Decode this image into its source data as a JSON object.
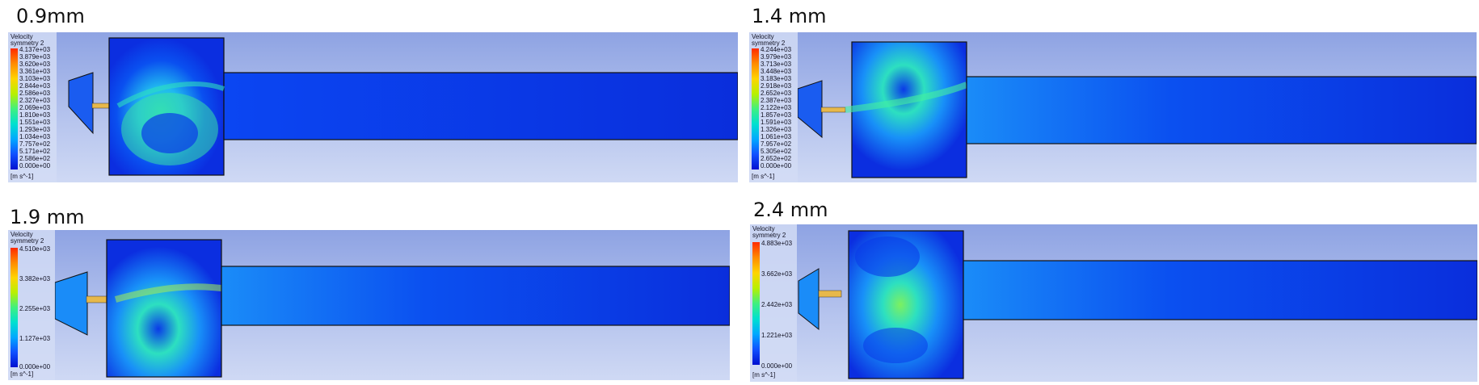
{
  "panels": [
    {
      "title": "0.9mm",
      "legend_header": [
        "Velocity",
        "symmetry 2"
      ],
      "unit": "[m s^-1]",
      "ticks": [
        "4.137e+03",
        "3.879e+03",
        "3.620e+03",
        "3.361e+03",
        "3.103e+03",
        "2.844e+03",
        "2.586e+03",
        "2.327e+03",
        "2.069e+03",
        "1.810e+03",
        "1.551e+03",
        "1.293e+03",
        "1.034e+03",
        "7.757e+02",
        "5.171e+02",
        "2.586e+02",
        "0.000e+00"
      ]
    },
    {
      "title": "1.4 mm",
      "legend_header": [
        "Velocity",
        "symmetry 2"
      ],
      "unit": "[m s^-1]",
      "ticks": [
        "4.244e+03",
        "3.979e+03",
        "3.713e+03",
        "3.448e+03",
        "3.183e+03",
        "2.918e+03",
        "2.652e+03",
        "2.387e+03",
        "2.122e+03",
        "1.857e+03",
        "1.591e+03",
        "1.326e+03",
        "1.061e+03",
        "7.957e+02",
        "5.305e+02",
        "2.652e+02",
        "0.000e+00"
      ]
    },
    {
      "title": "1.9 mm",
      "legend_header": [
        "Velocity",
        "symmetry 2"
      ],
      "unit": "[m s^-1]",
      "ticks": [
        "4.510e+03",
        "3.382e+03",
        "2.255e+03",
        "1.127e+03",
        "0.000e+00"
      ]
    },
    {
      "title": "2.4 mm",
      "legend_header": [
        "Velocity",
        "symmetry 2"
      ],
      "unit": "[m s^-1]",
      "ticks": [
        "4.883e+03",
        "3.662e+03",
        "2.442e+03",
        "1.221e+03",
        "0.000e+00"
      ]
    }
  ],
  "colors": {
    "domain": "#0b2ee0",
    "domain_dark": "#0820b8",
    "jet": "#e7b84a",
    "colormap": [
      "#ff2a00",
      "#ff8a00",
      "#ffd400",
      "#b8f000",
      "#3ff080",
      "#00e0d0",
      "#00a8ff",
      "#1050ff",
      "#0010d0"
    ]
  }
}
